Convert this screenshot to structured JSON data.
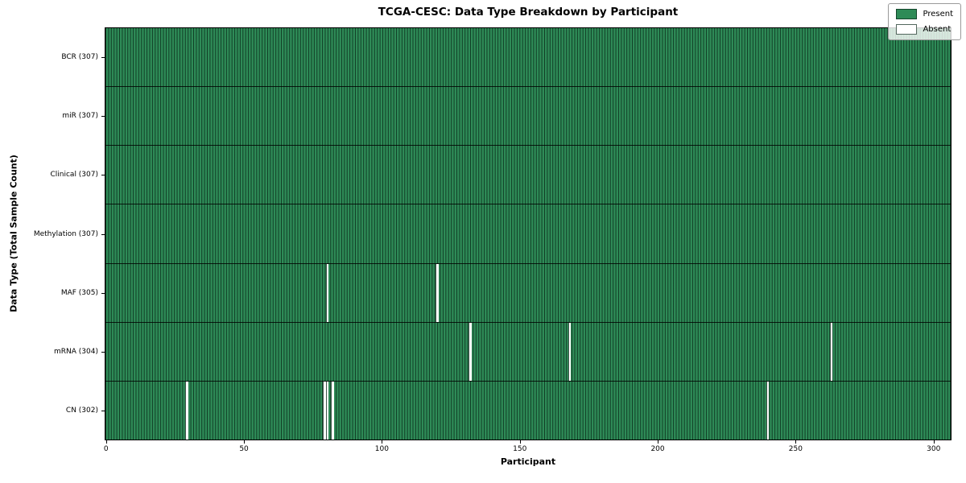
{
  "figure": {
    "title": "TCGA-CESC: Data Type Breakdown by Participant"
  },
  "chart_data": {
    "type": "heatmap",
    "title": "TCGA-CESC: Data Type Breakdown by Participant",
    "xlabel": "Participant",
    "ylabel": "Data Type (Total Sample Count)",
    "n_participants": 307,
    "xlim": [
      -0.5,
      306.5
    ],
    "x_ticks": [
      0,
      50,
      100,
      150,
      200,
      250,
      300
    ],
    "grid": false,
    "legend": {
      "position": "upper right",
      "items": [
        {
          "label": "Present",
          "color": "#2e8b57"
        },
        {
          "label": "Absent",
          "color": "#ffffff"
        }
      ]
    },
    "colors": {
      "present": "#2e8b57",
      "absent": "#ffffff",
      "bar_edge": "rgba(8,38,23,0.78)",
      "row_divider": "#000000",
      "axes_border": "#000000",
      "background": "#ffffff"
    },
    "rows": [
      {
        "label": "BCR (307)",
        "data_type": "BCR",
        "total_samples": 307,
        "absent_participants": []
      },
      {
        "label": "miR (307)",
        "data_type": "miR",
        "total_samples": 307,
        "absent_participants": []
      },
      {
        "label": "Clinical (307)",
        "data_type": "Clinical",
        "total_samples": 307,
        "absent_participants": []
      },
      {
        "label": "Methylation (307)",
        "data_type": "Methylation",
        "total_samples": 307,
        "absent_participants": []
      },
      {
        "label": "MAF (305)",
        "data_type": "MAF",
        "total_samples": 305,
        "absent_participants": [
          80,
          120
        ]
      },
      {
        "label": "mRNA (304)",
        "data_type": "mRNA",
        "total_samples": 304,
        "absent_participants": [
          132,
          168,
          263
        ]
      },
      {
        "label": "CN (302)",
        "data_type": "CN",
        "total_samples": 302,
        "absent_participants": [
          29,
          79,
          80,
          82,
          240
        ]
      }
    ]
  }
}
